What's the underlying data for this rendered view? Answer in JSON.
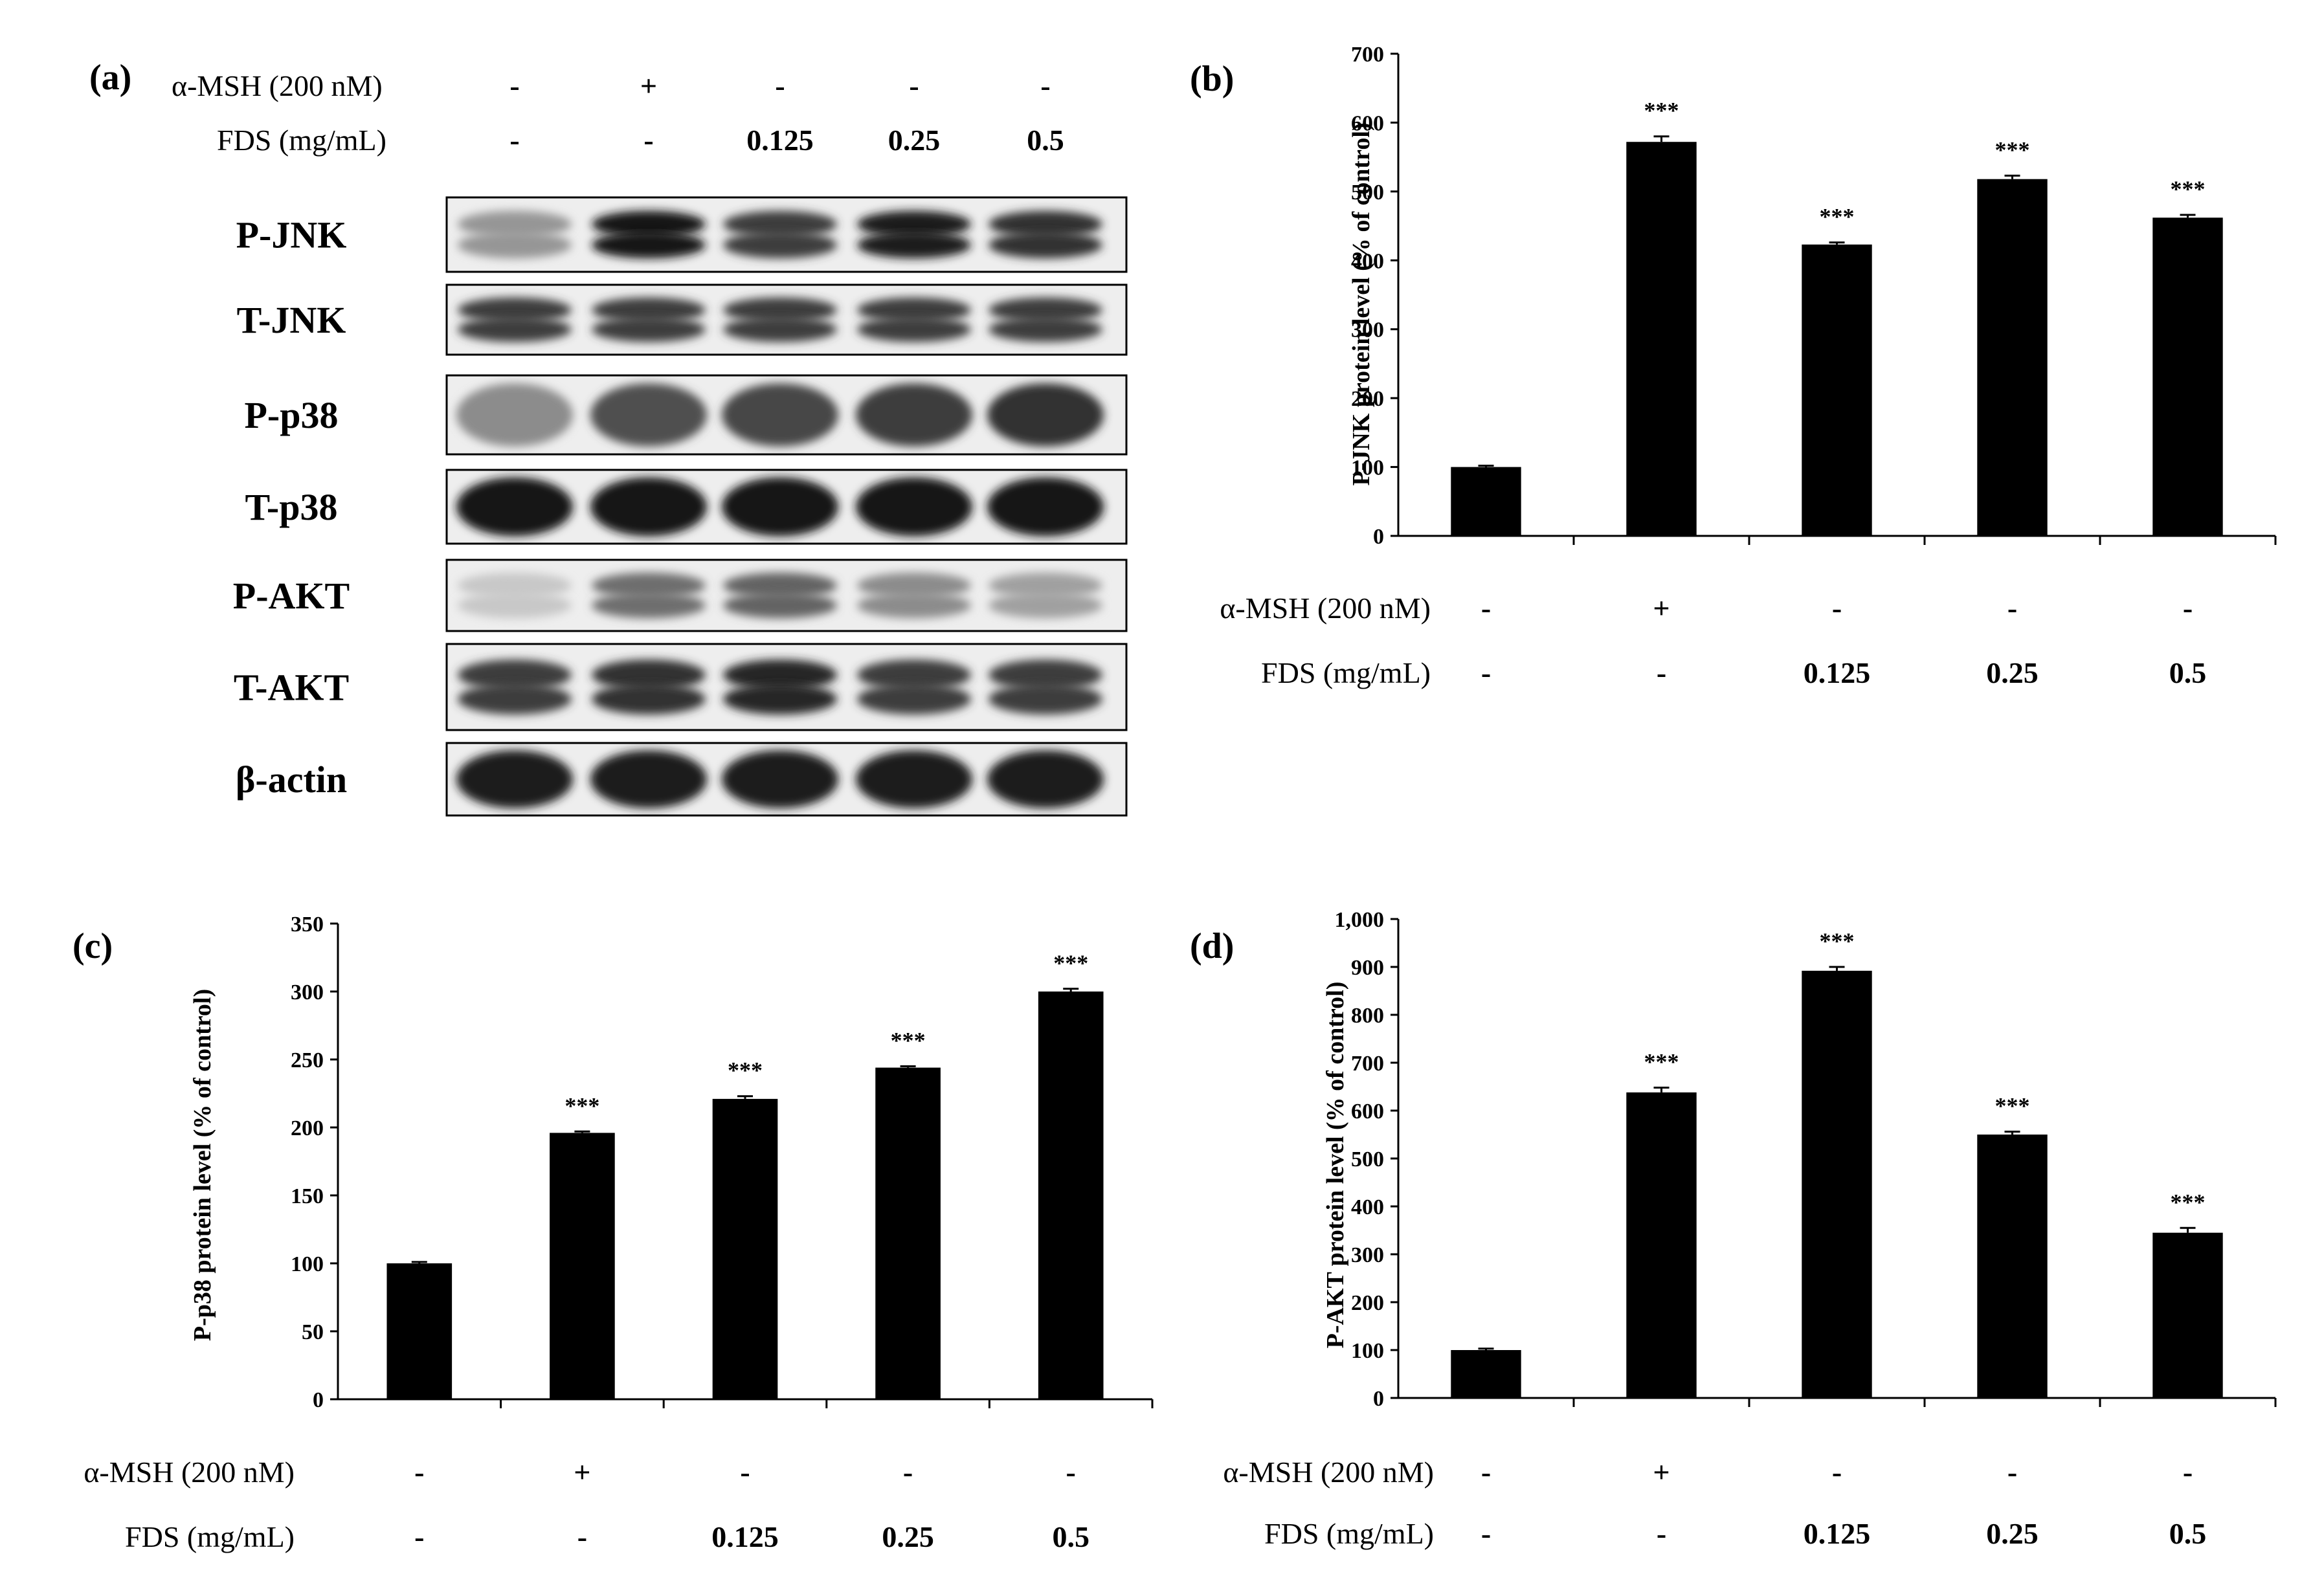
{
  "treatments": {
    "msh_label": "α-MSH (200 nM)",
    "fds_label": "FDS (mg/mL)",
    "msh": [
      "-",
      "+",
      "-",
      "-",
      "-"
    ],
    "fds": [
      "-",
      "-",
      "0.125",
      "0.25",
      "0.5"
    ]
  },
  "panel_a": {
    "label": "(a)",
    "blots": [
      {
        "name": "P-JNK",
        "intensities": [
          0.35,
          1.0,
          0.8,
          0.95,
          0.85
        ],
        "double": true
      },
      {
        "name": "T-JNK",
        "intensities": [
          0.8,
          0.8,
          0.8,
          0.8,
          0.8
        ],
        "double": true
      },
      {
        "name": "P-p38",
        "intensities": [
          0.4,
          0.7,
          0.75,
          0.8,
          0.85
        ],
        "double": false
      },
      {
        "name": "T-p38",
        "intensities": [
          1.0,
          1.0,
          1.0,
          1.0,
          1.0
        ],
        "double": false
      },
      {
        "name": "P-AKT",
        "intensities": [
          0.1,
          0.55,
          0.6,
          0.4,
          0.3
        ],
        "double": true
      },
      {
        "name": "T-AKT",
        "intensities": [
          0.8,
          0.85,
          0.9,
          0.8,
          0.8
        ],
        "double": true
      },
      {
        "name": "β-actin",
        "intensities": [
          0.95,
          0.95,
          0.95,
          0.95,
          0.95
        ],
        "double": false
      }
    ]
  },
  "chart_data": [
    {
      "panel": "(b)",
      "type": "bar",
      "ylabel": "P-JNK protein level (% of control)",
      "ylim": [
        0,
        700
      ],
      "yticks": [
        "0",
        "100",
        "200",
        "300",
        "400",
        "500",
        "600",
        "700"
      ],
      "values": [
        100,
        572,
        423,
        518,
        462
      ],
      "errors": [
        2,
        8,
        3,
        5,
        4
      ],
      "significance": [
        "",
        "***",
        "***",
        "***",
        "***"
      ],
      "color": "#000000"
    },
    {
      "panel": "(c)",
      "type": "bar",
      "ylabel": "P-p38 protein level (% of control)",
      "ylim": [
        0,
        350
      ],
      "yticks": [
        "0",
        "50",
        "100",
        "150",
        "200",
        "250",
        "300",
        "350"
      ],
      "values": [
        100,
        196,
        221,
        244,
        300
      ],
      "errors": [
        1,
        1,
        2,
        1,
        2
      ],
      "significance": [
        "",
        "***",
        "***",
        "***",
        "***"
      ],
      "color": "#000000"
    },
    {
      "panel": "(d)",
      "type": "bar",
      "ylabel": "P-AKT protein level (% of control)",
      "ylim": [
        0,
        1000
      ],
      "yticks": [
        "0",
        "100",
        "200",
        "300",
        "400",
        "500",
        "600",
        "700",
        "800",
        "900",
        "1,000"
      ],
      "values": [
        100,
        638,
        892,
        550,
        345
      ],
      "errors": [
        3,
        10,
        8,
        6,
        10
      ],
      "significance": [
        "",
        "***",
        "***",
        "***",
        "***"
      ],
      "color": "#000000"
    }
  ]
}
